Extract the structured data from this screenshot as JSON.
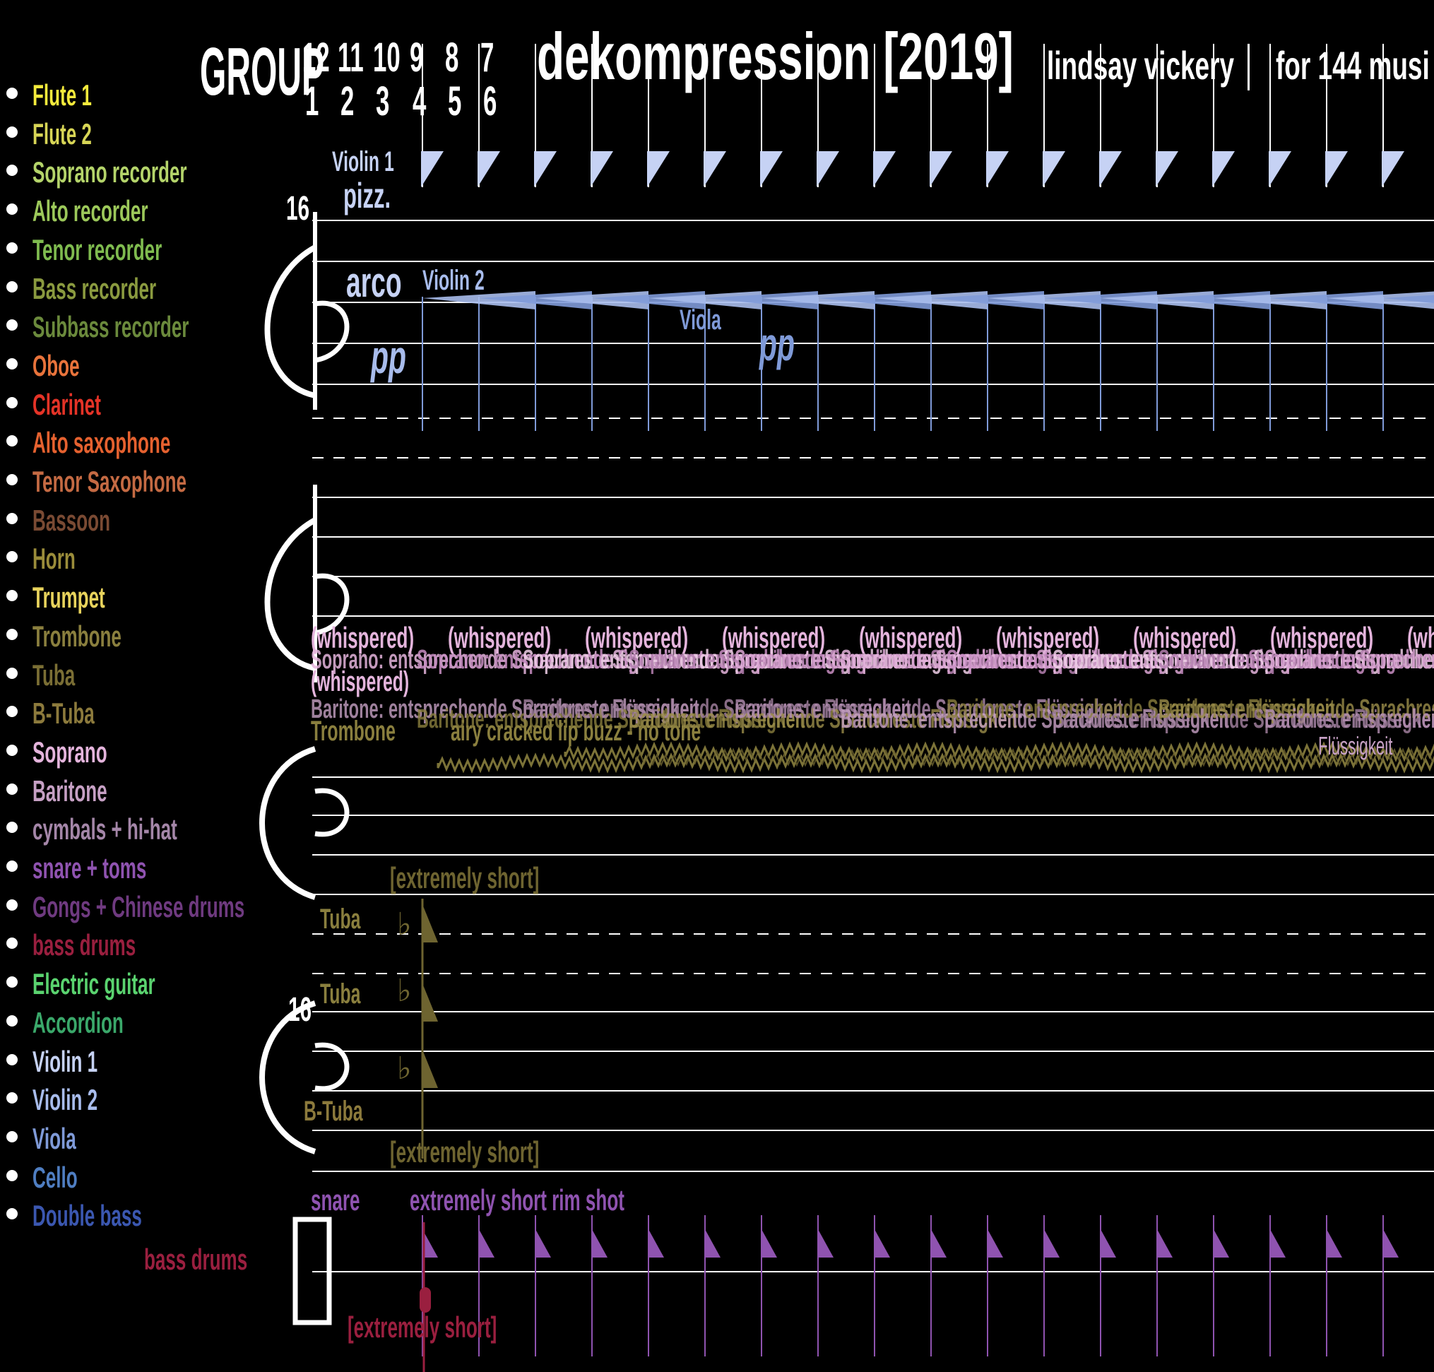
{
  "header": {
    "group_label": "GROUP",
    "group_numbers_top": [
      "12",
      "11",
      "10",
      "9",
      "8",
      "7"
    ],
    "group_numbers_bottom": [
      "1",
      "2",
      "3",
      "4",
      "5",
      "6"
    ],
    "title": "dekompression [2019]",
    "composer": "lindsay vickery",
    "subtitle": "for 144 musi"
  },
  "legend": [
    {
      "label": "Flute 1",
      "color": "#f4ea3c"
    },
    {
      "label": "Flute 2",
      "color": "#d7d556"
    },
    {
      "label": "Soprano recorder",
      "color": "#b4d46a"
    },
    {
      "label": "Alto recorder",
      "color": "#9cc85a"
    },
    {
      "label": "Tenor recorder",
      "color": "#7fbb4f"
    },
    {
      "label": "Bass recorder",
      "color": "#8a9a3f"
    },
    {
      "label": "Subbass recorder",
      "color": "#6b8a3c"
    },
    {
      "label": "Oboe",
      "color": "#e8733b"
    },
    {
      "label": "Clarinet",
      "color": "#e53327"
    },
    {
      "label": "Alto saxophone",
      "color": "#e5612f"
    },
    {
      "label": "Tenor Saxophone",
      "color": "#c46a43"
    },
    {
      "label": "Bassoon",
      "color": "#7a4a33"
    },
    {
      "label": "Horn",
      "color": "#9a8c3a"
    },
    {
      "label": "Trumpet",
      "color": "#e8d35c"
    },
    {
      "label": "Trombone",
      "color": "#8a7f3e"
    },
    {
      "label": "Tuba",
      "color": "#7a6e34"
    },
    {
      "label": "B-Tuba",
      "color": "#8c7a3c"
    },
    {
      "label": "Soprano",
      "color": "#e4b4dc"
    },
    {
      "label": "Baritone",
      "color": "#c6a0c4"
    },
    {
      "label": "cymbals + hi-hat",
      "color": "#a486a8"
    },
    {
      "label": "snare + toms",
      "color": "#8f53b0"
    },
    {
      "label": "Gongs + Chinese drums",
      "color": "#6f3a80"
    },
    {
      "label": "bass drums",
      "color": "#9a1f3f"
    },
    {
      "label": "Electric guitar",
      "color": "#5ad36f"
    },
    {
      "label": "Accordion",
      "color": "#3aa86a"
    },
    {
      "label": "Violin 1",
      "color": "#c6d2f4"
    },
    {
      "label": "Violin 2",
      "color": "#a8bcec"
    },
    {
      "label": "Viola",
      "color": "#7f9ad8"
    },
    {
      "label": "Cello",
      "color": "#4f7ec2"
    },
    {
      "label": "Double bass",
      "color": "#3b57b0"
    }
  ],
  "score": {
    "time_sig_top": "16",
    "time_sig_bottom": "16",
    "violin1_label": "Violin 1",
    "violin1_technique": "pizz.",
    "arco": "arco",
    "violin2_label": "Violin 2",
    "viola_label": "Viola",
    "dynamic_pp": "pp",
    "whispered": "(whispered)",
    "soprano_text": "Soprano: entsprechende Sprachreste Signalübertragung",
    "baritone_text": "Baritone: entsprechende Sprachreste Flüssigkeit",
    "trombone_label": "Trombone",
    "trombone_instruction": "airy cracked lip buzz - no tone",
    "flussigkeit": "Flüssigkeit",
    "extremely_short_bracket": "[extremely short]",
    "tuba_label": "Tuba",
    "btuba_label": "B-Tuba",
    "snare_label": "snare",
    "rim_shot": "extremely short rim shot",
    "bass_drums_label": "bass drums",
    "flat_glyph": "♭"
  },
  "colors": {
    "violin1": "#c6d2f4",
    "violin2": "#a8bcec",
    "viola": "#7f9ad8",
    "soprano": "#e4b4dc",
    "baritone": "#c6a0c4",
    "trombone": "#8a7f3e",
    "tuba": "#6e6430",
    "snare": "#8f53b0",
    "bass_drums": "#9a1f3f"
  }
}
